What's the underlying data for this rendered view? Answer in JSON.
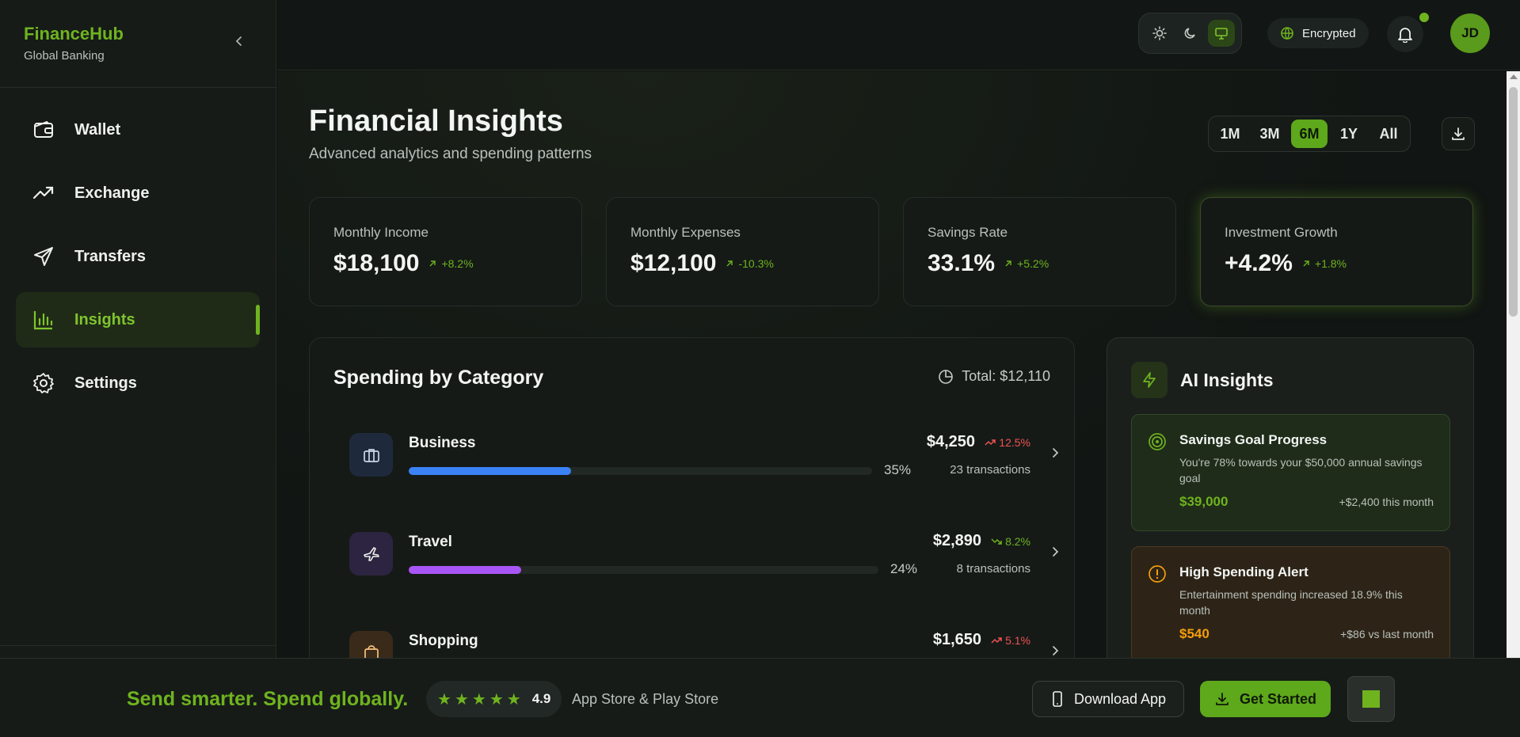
{
  "brand": {
    "name": "FinanceHub",
    "subtitle": "Global Banking"
  },
  "sidebar": {
    "items": [
      {
        "label": "Wallet",
        "icon": "wallet-icon",
        "active": false
      },
      {
        "label": "Exchange",
        "icon": "trending-up-icon",
        "active": false
      },
      {
        "label": "Transfers",
        "icon": "send-icon",
        "active": false
      },
      {
        "label": "Insights",
        "icon": "bar-chart-icon",
        "active": true
      },
      {
        "label": "Settings",
        "icon": "gear-icon",
        "active": false
      }
    ]
  },
  "topbar": {
    "theme_options": [
      "sun-icon",
      "moon-icon",
      "monitor-icon"
    ],
    "theme_selected": "monitor-icon",
    "encrypted_label": "Encrypted",
    "avatar_initials": "JD"
  },
  "page": {
    "title": "Financial Insights",
    "subtitle": "Advanced analytics and spending patterns",
    "ranges": [
      "1M",
      "3M",
      "6M",
      "1Y",
      "All"
    ],
    "range_selected": "6M"
  },
  "stats": [
    {
      "label": "Monthly Income",
      "value": "$18,100",
      "delta": "+8.2%"
    },
    {
      "label": "Monthly Expenses",
      "value": "$12,100",
      "delta": "-10.3%"
    },
    {
      "label": "Savings Rate",
      "value": "33.1%",
      "delta": "+5.2%"
    },
    {
      "label": "Investment Growth",
      "value": "+4.2%",
      "delta": "+1.8%"
    }
  ],
  "spending": {
    "title": "Spending by Category",
    "total": "Total: $12,110",
    "categories": [
      {
        "name": "Business",
        "amount": "$4,250",
        "trend": "12.5%",
        "trend_dir": "up",
        "percent": "35%",
        "percent_value": 35,
        "transactions": "23 transactions",
        "color": "#3b82f6",
        "icon": "briefcase-icon",
        "icon_bg": "#1e2a3c"
      },
      {
        "name": "Travel",
        "amount": "$2,890",
        "trend": "8.2%",
        "trend_dir": "down",
        "percent": "24%",
        "percent_value": 24,
        "transactions": "8 transactions",
        "color": "#a855f7",
        "icon": "plane-icon",
        "icon_bg": "#2c2440"
      },
      {
        "name": "Shopping",
        "amount": "$1,650",
        "trend": "5.1%",
        "trend_dir": "up",
        "percent": "",
        "percent_value": 0,
        "transactions": "",
        "color": "#f59e0b",
        "icon": "shopping-bag-icon",
        "icon_bg": "#3a2a1a"
      }
    ]
  },
  "ai": {
    "title": "AI Insights",
    "cards": [
      {
        "title": "Savings Goal Progress",
        "text": "You're 78% towards your $50,000 annual savings goal",
        "amount": "$39,000",
        "note": "+$2,400 this month",
        "color": "#6fb31f"
      },
      {
        "title": "High Spending Alert",
        "text": "Entertainment spending increased 18.9% this month",
        "amount": "$540",
        "note": "+$86 vs last month",
        "color": "#f59e0b"
      }
    ]
  },
  "banner": {
    "tagline": "Send smarter. Spend globally.",
    "rating": "4.9",
    "stars": 5,
    "stores": "App Store & Play Store",
    "download_label": "Download App",
    "get_started_label": "Get Started"
  }
}
